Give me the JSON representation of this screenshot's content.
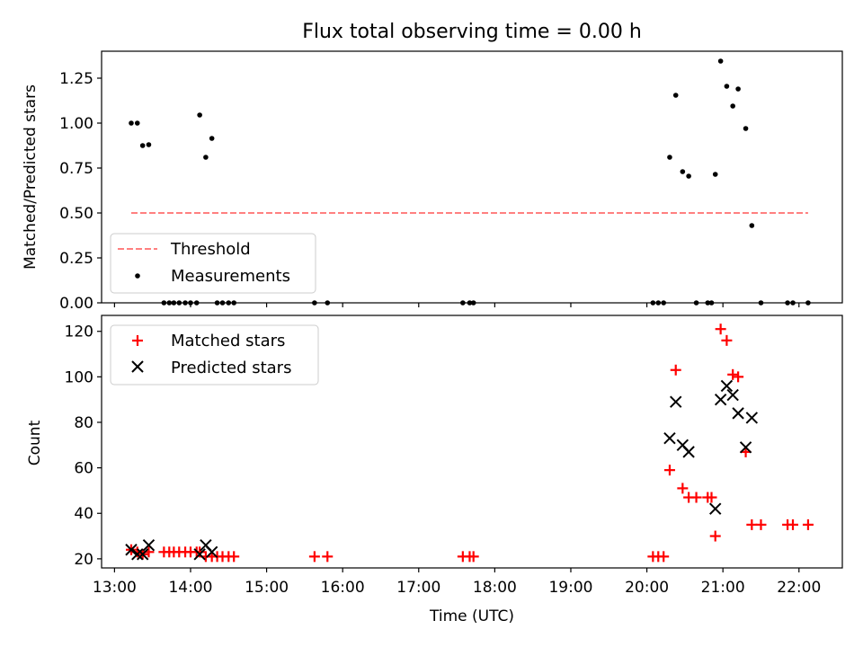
{
  "chart_data": [
    {
      "type": "scatter",
      "title": "Flux total observing time = 0.00 h",
      "ylabel": "Matched/Predicted stars",
      "xlabel": "",
      "xlim": [
        12.83,
        22.57
      ],
      "ylim": [
        0,
        1.4
      ],
      "x_ticks": [
        13,
        14,
        15,
        16,
        17,
        18,
        19,
        20,
        21,
        22
      ],
      "y_ticks": [
        {
          "value": 0,
          "label": "0.00"
        },
        {
          "value": 0.25,
          "label": "0.25"
        },
        {
          "value": 0.5,
          "label": "0.50"
        },
        {
          "value": 0.75,
          "label": "0.75"
        },
        {
          "value": 1.0,
          "label": "1.00"
        },
        {
          "value": 1.25,
          "label": "1.25"
        }
      ],
      "legend_position": "lower-left",
      "series": [
        {
          "name": "Threshold",
          "kind": "dashed-line",
          "color": "#ff8080",
          "x": [
            13.22,
            22.12
          ],
          "y": [
            0.5,
            0.5
          ]
        },
        {
          "name": "Measurements",
          "kind": "dot",
          "color": "#000000",
          "x": [
            13.22,
            13.3,
            13.37,
            13.45,
            13.65,
            13.72,
            13.78,
            13.85,
            13.93,
            14.0,
            14.08,
            14.12,
            14.2,
            14.28,
            14.35,
            14.42,
            14.5,
            14.57,
            15.63,
            15.8,
            17.58,
            17.67,
            17.72,
            20.08,
            20.15,
            20.22,
            20.3,
            20.38,
            20.47,
            20.55,
            20.65,
            20.8,
            20.85,
            20.9,
            20.97,
            21.05,
            21.13,
            21.2,
            21.3,
            21.38,
            21.5,
            21.85,
            21.92,
            22.12
          ],
          "y": [
            1.0,
            1.0,
            0.875,
            0.88,
            0.0,
            0.0,
            0.0,
            0.0,
            0.0,
            0.0,
            0.0,
            1.045,
            0.81,
            0.915,
            0.0,
            0.0,
            0.0,
            0.0,
            0.0,
            0.0,
            0.0,
            0.0,
            0.0,
            0.0,
            0.0,
            0.0,
            0.81,
            1.155,
            0.73,
            0.705,
            0.0,
            0.0,
            0.0,
            0.715,
            1.345,
            1.205,
            1.095,
            1.19,
            0.97,
            0.43,
            0.0,
            0.0,
            0.0,
            0.0
          ]
        }
      ]
    },
    {
      "type": "scatter",
      "title": "",
      "ylabel": "Count",
      "xlabel": "Time (UTC)",
      "xlim": [
        12.83,
        22.57
      ],
      "ylim": [
        16,
        127
      ],
      "x_ticks": [
        {
          "value": 13,
          "label": "13:00"
        },
        {
          "value": 14,
          "label": "14:00"
        },
        {
          "value": 15,
          "label": "15:00"
        },
        {
          "value": 16,
          "label": "16:00"
        },
        {
          "value": 17,
          "label": "17:00"
        },
        {
          "value": 18,
          "label": "18:00"
        },
        {
          "value": 19,
          "label": "19:00"
        },
        {
          "value": 20,
          "label": "20:00"
        },
        {
          "value": 21,
          "label": "21:00"
        },
        {
          "value": 22,
          "label": "22:00"
        }
      ],
      "y_ticks": [
        {
          "value": 20,
          "label": "20"
        },
        {
          "value": 40,
          "label": "40"
        },
        {
          "value": 60,
          "label": "60"
        },
        {
          "value": 80,
          "label": "80"
        },
        {
          "value": 100,
          "label": "100"
        },
        {
          "value": 120,
          "label": "120"
        }
      ],
      "legend_position": "upper-left",
      "series": [
        {
          "name": "Matched stars",
          "kind": "plus",
          "color": "#ff0000",
          "x": [
            13.22,
            13.3,
            13.37,
            13.45,
            13.65,
            13.72,
            13.78,
            13.85,
            13.93,
            14.0,
            14.08,
            14.12,
            14.2,
            14.28,
            14.35,
            14.42,
            14.5,
            14.57,
            15.63,
            15.8,
            17.58,
            17.67,
            17.72,
            20.08,
            20.15,
            20.22,
            20.3,
            20.38,
            20.47,
            20.55,
            20.65,
            20.8,
            20.85,
            20.9,
            20.97,
            21.05,
            21.13,
            21.2,
            21.3,
            21.38,
            21.5,
            21.85,
            21.92,
            22.12
          ],
          "y": [
            24,
            23,
            22,
            23,
            23,
            23,
            23,
            23,
            23,
            23,
            23,
            23,
            21,
            21,
            21,
            21,
            21,
            21,
            21,
            21,
            21,
            21,
            21,
            21,
            21,
            21,
            59,
            103,
            51,
            47,
            47,
            47,
            47,
            30,
            121,
            116,
            101,
            100,
            67,
            35,
            35,
            35,
            35,
            35
          ]
        },
        {
          "name": "Predicted stars",
          "kind": "x",
          "color": "#000000",
          "x": [
            13.22,
            13.3,
            13.37,
            13.45,
            14.12,
            14.2,
            14.28,
            20.3,
            20.38,
            20.47,
            20.55,
            20.9,
            20.97,
            21.05,
            21.13,
            21.2,
            21.3,
            21.38
          ],
          "y": [
            24,
            22,
            22,
            26,
            22,
            26,
            23,
            73,
            89,
            70,
            67,
            42,
            90,
            96,
            92,
            84,
            69,
            82
          ]
        }
      ]
    }
  ]
}
